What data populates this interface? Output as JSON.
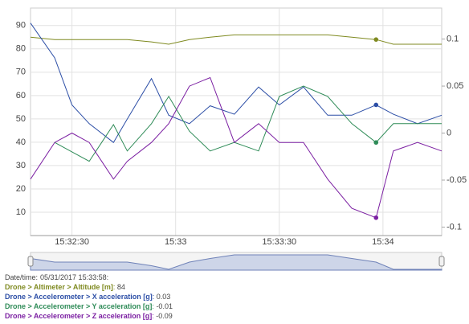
{
  "chart_data": {
    "type": "line",
    "x": [
      "15:32:18",
      "15:32:25",
      "15:32:30",
      "15:32:35",
      "15:32:42",
      "15:32:46",
      "15:32:53",
      "15:32:58",
      "15:33:04",
      "15:33:10",
      "15:33:17",
      "15:33:24",
      "15:33:30",
      "15:33:37",
      "15:33:44",
      "15:33:51",
      "15:33:58",
      "15:34:03",
      "15:34:10",
      "15:34:17"
    ],
    "xlim": [
      "15:32:18",
      "15:34:17"
    ],
    "xticks": [
      "15:32:30",
      "15:33",
      "15:33:30",
      "15:34"
    ],
    "ylim": [
      0,
      97.5
    ],
    "yticks": [
      10,
      20,
      30,
      40,
      50,
      60,
      70,
      80,
      90
    ],
    "y2lim": [
      -0.109,
      0.133
    ],
    "y2ticks": [
      0.1,
      0.05,
      0,
      -0.05,
      -0.1
    ],
    "grid": true,
    "series": [
      {
        "name": "Drone > Altimeter > Altitude [m]",
        "color": "#7f8a20",
        "values": [
          85,
          84,
          84,
          84,
          84,
          84,
          83,
          82,
          84,
          85,
          86,
          86,
          86,
          86,
          86,
          85,
          84,
          82,
          82,
          82
        ]
      },
      {
        "name": "Drone > Accelerometer > X acceleration [g]",
        "color": "#2c4ea6",
        "axis": "y2",
        "values": [
          0.117,
          0.08,
          0.03,
          0.01,
          -0.01,
          0.015,
          0.058,
          0.019,
          0.01,
          0.029,
          0.02,
          0.049,
          0.03,
          0.049,
          0.019,
          0.019,
          0.03,
          0.02,
          0.01,
          0.019
        ]
      },
      {
        "name": "Drone > Accelerometer > Y acceleration [g]",
        "color": "#2e8b57",
        "axis": "y2",
        "values": [
          null,
          -0.01,
          -0.02,
          -0.03,
          0.009,
          -0.019,
          0.01,
          0.039,
          0.002,
          -0.019,
          -0.01,
          -0.019,
          0.039,
          0.05,
          0.039,
          0.01,
          -0.01,
          0.01,
          0.01,
          0.01
        ]
      },
      {
        "name": "Drone > Accelerometer > Z acceleration [g]",
        "color": "#7b1fa2",
        "axis": "y2",
        "values": [
          -0.049,
          -0.01,
          0,
          -0.01,
          -0.049,
          -0.03,
          -0.01,
          0.01,
          0.05,
          0.059,
          -0.01,
          0.01,
          -0.01,
          -0.01,
          -0.049,
          -0.08,
          -0.09,
          -0.019,
          -0.01,
          -0.019
        ]
      }
    ],
    "readout": {
      "time_label": "Date/time:",
      "time": "05/31/2017 15:33:58:",
      "separator": ": ",
      "index": 16,
      "values": [
        84,
        0.03,
        -0.01,
        -0.09
      ]
    }
  }
}
